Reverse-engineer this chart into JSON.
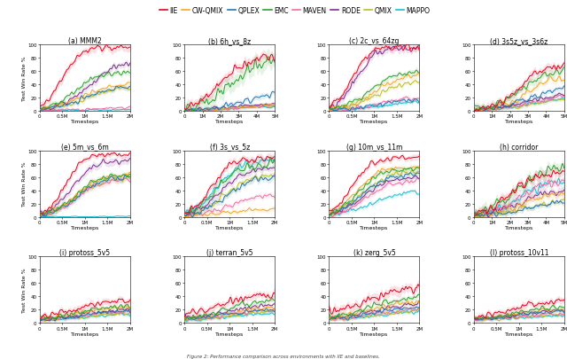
{
  "legend_entries": [
    {
      "label": "IIE",
      "color": "#e8001d"
    },
    {
      "label": "CW-QMIX",
      "color": "#f5a623"
    },
    {
      "label": "QPLEX",
      "color": "#1f77b4"
    },
    {
      "label": "EMC",
      "color": "#2ca02c"
    },
    {
      "label": "MAVEN",
      "color": "#f768a1"
    },
    {
      "label": "RODE",
      "color": "#7b2d8b"
    },
    {
      "label": "QMIX",
      "color": "#bcbd22"
    },
    {
      "label": "MAPPO",
      "color": "#17becf"
    }
  ],
  "subplots": [
    {
      "title": "(a) MMM2",
      "xmax": 2000000,
      "xstep": 500000,
      "row": 0,
      "col": 0
    },
    {
      "title": "(b) 6h_vs_8z",
      "xmax": 5000000,
      "xstep": 1000000,
      "row": 0,
      "col": 1
    },
    {
      "title": "(c) 2c_vs_64zg",
      "xmax": 2000000,
      "xstep": 500000,
      "row": 0,
      "col": 2
    },
    {
      "title": "(d) 3s5z_vs_3s6z",
      "xmax": 5000000,
      "xstep": 1000000,
      "row": 0,
      "col": 3
    },
    {
      "title": "(e) 5m_vs_6m",
      "xmax": 2000000,
      "xstep": 500000,
      "row": 1,
      "col": 0
    },
    {
      "title": "(f) 3s_vs_5z",
      "xmax": 2000000,
      "xstep": 500000,
      "row": 1,
      "col": 1
    },
    {
      "title": "(g) 10m_vs_11m",
      "xmax": 2000000,
      "xstep": 500000,
      "row": 1,
      "col": 2
    },
    {
      "title": "(h) corridor",
      "xmax": 5000000,
      "xstep": 1000000,
      "row": 1,
      "col": 3
    },
    {
      "title": "(i) protoss_5v5",
      "xmax": 2000000,
      "xstep": 500000,
      "row": 2,
      "col": 0
    },
    {
      "title": "(j) terran_5v5",
      "xmax": 2000000,
      "xstep": 500000,
      "row": 2,
      "col": 1
    },
    {
      "title": "(k) zerg_5v5",
      "xmax": 2000000,
      "xstep": 500000,
      "row": 2,
      "col": 2
    },
    {
      "title": "(l) protoss_10v11",
      "xmax": 2000000,
      "xstep": 500000,
      "row": 2,
      "col": 3
    }
  ],
  "colors": {
    "IIE": "#e8001d",
    "CW-QMIX": "#f5a623",
    "QPLEX": "#1f77b4",
    "EMC": "#2ca02c",
    "MAVEN": "#f768a1",
    "RODE": "#7b2d8b",
    "QMIX": "#bcbd22",
    "MAPPO": "#17becf"
  },
  "ylabel": "Test Win Rate %",
  "xlabel": "Timesteps",
  "figure_caption": "Figure 2: Performance comparison across environments with IIE and baselines."
}
